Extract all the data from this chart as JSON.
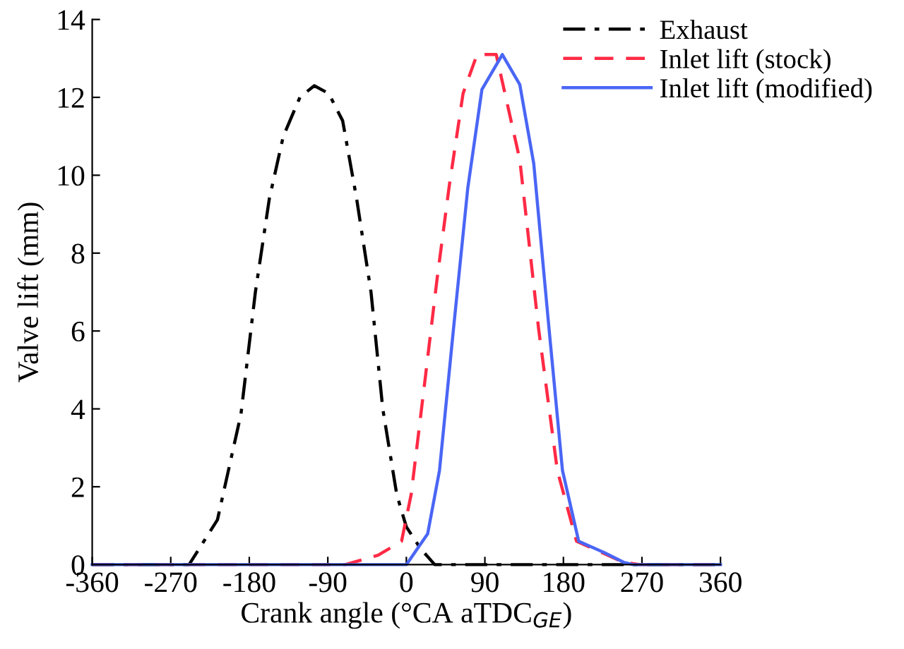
{
  "chart_data": {
    "type": "line",
    "xlabel": "Crank angle (°CA aTDC$_{GE}$)",
    "ylabel": "Valve lift (mm)",
    "xlim": [
      -360,
      360
    ],
    "xticks": [
      -360,
      -270,
      -180,
      -90,
      0,
      90,
      180,
      270,
      360
    ],
    "ylim": [
      0,
      14
    ],
    "yticks": [
      0,
      2,
      4,
      6,
      8,
      10,
      12,
      14
    ],
    "grid": false,
    "legend": "top right",
    "marker": "none",
    "series": [
      {
        "name": "Exhaust",
        "color": "#000000",
        "line_style": "dashdot",
        "x": [
          -360,
          -249,
          -216.5,
          -189.5,
          -173,
          -157,
          -141,
          -122,
          -105.5,
          -89,
          -73,
          -57,
          -40.5,
          -27,
          -11,
          0,
          16,
          32.5,
          360
        ],
        "values": [
          0,
          0,
          1.15,
          3.87,
          7.0,
          9.4,
          11.0,
          12.0,
          12.3,
          12.1,
          11.4,
          9.4,
          7.0,
          4.0,
          1.8,
          0.97,
          0.42,
          0,
          0
        ]
      },
      {
        "name": "Inlet lift (stock)",
        "color": "#ff2a45",
        "line_style": "dashed",
        "x": [
          -360,
          -70,
          -32.5,
          -5.5,
          5.5,
          21.7,
          35,
          49,
          65,
          81,
          103,
          130,
          151.6,
          173,
          195,
          249,
          268,
          360
        ],
        "values": [
          0,
          0,
          0.24,
          0.6,
          1.8,
          4.8,
          7.3,
          9.7,
          12.1,
          13.1,
          13.1,
          10.4,
          6.05,
          2.42,
          0.6,
          0.06,
          0,
          0
        ]
      },
      {
        "name": "Inlet lift (modified)",
        "color": "#4a66f5",
        "line_style": "solid",
        "x": [
          -360,
          0,
          24.4,
          38,
          54,
          70.4,
          86.6,
          110,
          130,
          146,
          162.5,
          178.9,
          197.5,
          227.5,
          249,
          260,
          360
        ],
        "values": [
          0,
          0,
          0.79,
          2.42,
          6.05,
          9.67,
          12.2,
          13.1,
          12.33,
          10.3,
          6.3,
          2.42,
          0.6,
          0.3,
          0.06,
          0,
          0
        ]
      }
    ]
  }
}
